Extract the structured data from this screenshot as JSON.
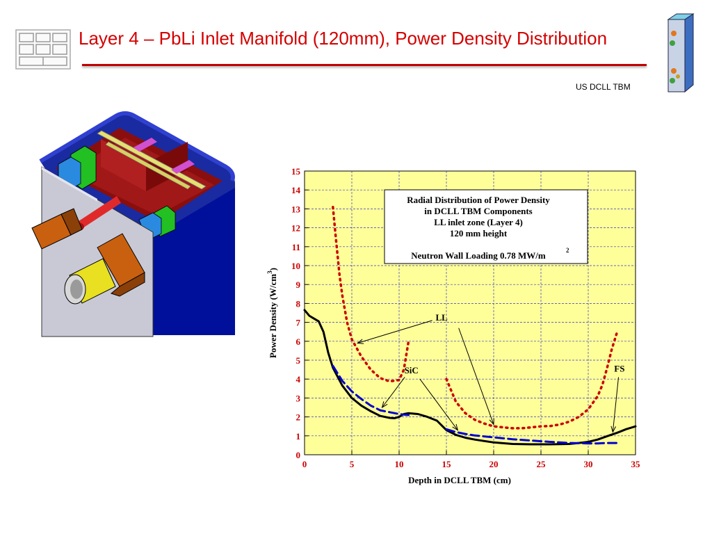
{
  "slide": {
    "title": "Layer 4 – PbLi Inlet Manifold (120mm), Power Density Distribution",
    "subtitle": "US DCLL TBM",
    "accent_color": "#d40000"
  },
  "chart_data": {
    "type": "line",
    "title_lines": [
      "Radial Distribution of Power Density",
      "in DCLL TBM Components",
      "LL inlet zone (Layer 4)",
      "120 mm height",
      "",
      "Neutron Wall Loading 0.78 MW/m"
    ],
    "title_superscript": "2",
    "xlabel": "Depth in DCLL TBM (cm)",
    "ylabel": "Power Density (W/cm",
    "ylabel_superscript": "3",
    "ylabel_suffix": ")",
    "xlim": [
      0,
      35
    ],
    "ylim": [
      0,
      15
    ],
    "xticks": [
      "0",
      "5",
      "10",
      "15",
      "20",
      "25",
      "30",
      "35"
    ],
    "yticks": [
      "0",
      "1",
      "2",
      "3",
      "4",
      "5",
      "6",
      "7",
      "8",
      "9",
      "10",
      "11",
      "12",
      "13",
      "14",
      "15"
    ],
    "grid": true,
    "plot_background": "#ffff99",
    "tick_label_color": "#cc0000",
    "series": [
      {
        "style": "solid",
        "color": "#000000",
        "segments": [
          [
            [
              0,
              7.65
            ],
            [
              0.5,
              7.35
            ],
            [
              1,
              7.2
            ],
            [
              1.5,
              7.05
            ],
            [
              2,
              6.5
            ],
            [
              2.5,
              5.4
            ],
            [
              3,
              4.6
            ],
            [
              4,
              3.65
            ],
            [
              5,
              3.0
            ],
            [
              6,
              2.6
            ],
            [
              7,
              2.3
            ],
            [
              8,
              2.05
            ],
            [
              9,
              1.95
            ],
            [
              9.5,
              1.93
            ],
            [
              10,
              2.0
            ],
            [
              10.5,
              2.15
            ],
            [
              11,
              2.2
            ],
            [
              12,
              2.15
            ],
            [
              13,
              2.0
            ],
            [
              14,
              1.8
            ],
            [
              15,
              1.3
            ],
            [
              16,
              1.05
            ],
            [
              17,
              0.9
            ],
            [
              18,
              0.8
            ],
            [
              20,
              0.65
            ],
            [
              22,
              0.57
            ],
            [
              24,
              0.55
            ],
            [
              26,
              0.55
            ],
            [
              28,
              0.57
            ],
            [
              29,
              0.62
            ],
            [
              30,
              0.68
            ],
            [
              31,
              0.8
            ],
            [
              32,
              0.98
            ],
            [
              33,
              1.15
            ],
            [
              34,
              1.35
            ],
            [
              35,
              1.5
            ]
          ]
        ]
      },
      {
        "style": "dashed",
        "color": "#0000cc",
        "segments": [
          [
            [
              3,
              4.7
            ],
            [
              4,
              3.9
            ],
            [
              5,
              3.35
            ],
            [
              6,
              2.95
            ],
            [
              7,
              2.6
            ],
            [
              8,
              2.35
            ],
            [
              9,
              2.25
            ],
            [
              10,
              2.15
            ],
            [
              11,
              2.1
            ]
          ],
          [
            [
              15,
              1.35
            ],
            [
              16,
              1.2
            ],
            [
              17,
              1.1
            ],
            [
              18,
              1.02
            ],
            [
              20,
              0.92
            ],
            [
              22,
              0.82
            ],
            [
              24,
              0.75
            ],
            [
              26,
              0.68
            ],
            [
              28,
              0.62
            ],
            [
              30,
              0.6
            ],
            [
              31,
              0.6
            ],
            [
              32,
              0.62
            ],
            [
              33,
              0.62
            ]
          ]
        ]
      },
      {
        "style": "dotted",
        "color": "#cc0000",
        "segments": [
          [
            [
              3,
              13.1
            ],
            [
              3.3,
              11.5
            ],
            [
              3.7,
              9.5
            ],
            [
              4,
              8.4
            ],
            [
              4.5,
              7.0
            ],
            [
              5,
              6.1
            ],
            [
              6,
              5.2
            ],
            [
              7,
              4.5
            ],
            [
              8,
              4.05
            ],
            [
              9,
              3.88
            ],
            [
              10,
              3.95
            ],
            [
              10.5,
              4.5
            ],
            [
              11,
              6.0
            ]
          ],
          [
            [
              15,
              4.0
            ],
            [
              15.5,
              3.4
            ],
            [
              16,
              2.8
            ],
            [
              17,
              2.2
            ],
            [
              18,
              1.85
            ],
            [
              19,
              1.65
            ],
            [
              20,
              1.5
            ],
            [
              21,
              1.45
            ],
            [
              22,
              1.4
            ],
            [
              23,
              1.4
            ],
            [
              24,
              1.45
            ],
            [
              25,
              1.5
            ],
            [
              26,
              1.52
            ],
            [
              27,
              1.6
            ],
            [
              28,
              1.75
            ],
            [
              29,
              2.0
            ],
            [
              30,
              2.4
            ],
            [
              31,
              3.1
            ],
            [
              31.5,
              3.7
            ],
            [
              32,
              4.6
            ],
            [
              32.5,
              5.6
            ],
            [
              33,
              6.4
            ]
          ]
        ]
      }
    ],
    "annotations": [
      {
        "label": "LL",
        "at": [
          14.5,
          7.1
        ],
        "arrows": [
          [
            [
              13.5,
              7.1
            ],
            [
              5.6,
              5.9
            ]
          ],
          [
            [
              16.3,
              6.7
            ],
            [
              20,
              1.6
            ]
          ]
        ]
      },
      {
        "label": "SiC",
        "at": [
          11.3,
          4.3
        ],
        "arrows": [
          [
            [
              10.6,
              4.1
            ],
            [
              8.2,
              2.5
            ]
          ],
          [
            [
              12.2,
              4.0
            ],
            [
              16.2,
              1.3
            ]
          ]
        ]
      },
      {
        "label": "FS",
        "at": [
          33.3,
          4.4
        ],
        "arrows": [
          [
            [
              33.2,
              4.1
            ],
            [
              32.6,
              1.2
            ]
          ]
        ]
      }
    ]
  }
}
